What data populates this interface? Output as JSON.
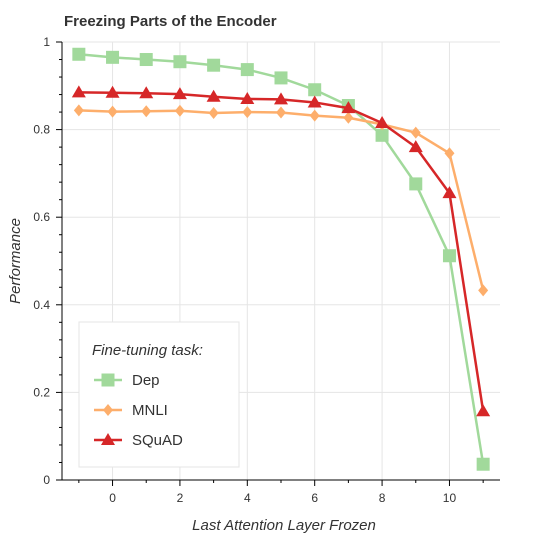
{
  "chart_data": {
    "type": "line",
    "title": "Freezing Parts of the Encoder",
    "xlabel": "Last Attention Layer Frozen",
    "ylabel": "Performance",
    "xlim": [
      -1.5,
      11.5
    ],
    "ylim": [
      0,
      1
    ],
    "x": [
      -1,
      0,
      1,
      2,
      3,
      4,
      5,
      6,
      7,
      8,
      9,
      10,
      11
    ],
    "x_ticks": [
      0,
      2,
      4,
      6,
      8,
      10
    ],
    "y_ticks": [
      0,
      0.2,
      0.4,
      0.6,
      0.8,
      1
    ],
    "grid": true,
    "legend": {
      "title": "Fine-tuning task:",
      "position": "bottom-left"
    },
    "series": [
      {
        "name": "Dep",
        "color": "#a1d99b",
        "marker": "square",
        "values": [
          0.972,
          0.965,
          0.96,
          0.955,
          0.947,
          0.937,
          0.918,
          0.891,
          0.855,
          0.787,
          0.676,
          0.512,
          0.036
        ]
      },
      {
        "name": "MNLI",
        "color": "#fdae6b",
        "marker": "diamond",
        "values": [
          0.844,
          0.841,
          0.842,
          0.843,
          0.838,
          0.84,
          0.839,
          0.832,
          0.827,
          0.812,
          0.793,
          0.746,
          0.433
        ]
      },
      {
        "name": "SQuAD",
        "color": "#d62728",
        "marker": "triangle",
        "values": [
          0.885,
          0.884,
          0.883,
          0.881,
          0.875,
          0.87,
          0.869,
          0.862,
          0.849,
          0.815,
          0.76,
          0.655,
          0.157
        ]
      }
    ]
  }
}
